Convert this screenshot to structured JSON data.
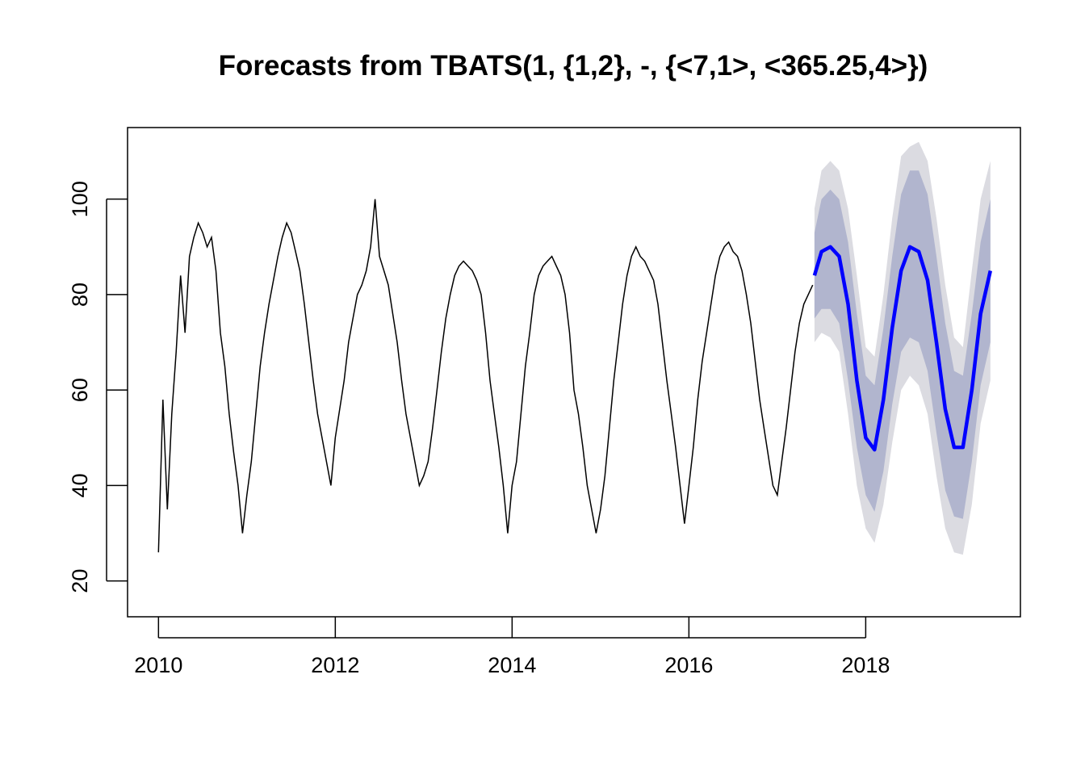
{
  "chart_data": {
    "type": "line",
    "title": "Forecasts from TBATS(1, {1,2}, -, {<7,1>, <365.25,4>})",
    "xlabel": "",
    "ylabel": "",
    "xlim": [
      2009.65,
      2019.75
    ],
    "ylim": [
      12.5,
      115
    ],
    "x_ticks": [
      2010,
      2012,
      2014,
      2016,
      2018
    ],
    "x_tick_labels": [
      "2010",
      "2012",
      "2014",
      "2016",
      "2018"
    ],
    "y_ticks": [
      20,
      40,
      60,
      80,
      100
    ],
    "y_tick_labels": [
      "20",
      "40",
      "60",
      "80",
      "100"
    ],
    "grid": false,
    "legend": "none",
    "colors": {
      "history": "#000000",
      "forecast": "#0000ff",
      "band_80": "#b1b5ce",
      "band_95": "#dbdbe1"
    },
    "series": [
      {
        "role": "history",
        "x": [
          2010.0,
          2010.05,
          2010.1,
          2010.15,
          2010.2,
          2010.25,
          2010.3,
          2010.35,
          2010.4,
          2010.45,
          2010.5,
          2010.55,
          2010.6,
          2010.65,
          2010.7,
          2010.75,
          2010.8,
          2010.85,
          2010.9,
          2010.95,
          2011.0,
          2011.05,
          2011.1,
          2011.15,
          2011.2,
          2011.25,
          2011.3,
          2011.35,
          2011.4,
          2011.45,
          2011.5,
          2011.55,
          2011.6,
          2011.65,
          2011.7,
          2011.75,
          2011.8,
          2011.85,
          2011.9,
          2011.95,
          2012.0,
          2012.05,
          2012.1,
          2012.15,
          2012.2,
          2012.25,
          2012.3,
          2012.35,
          2012.4,
          2012.45,
          2012.5,
          2012.55,
          2012.6,
          2012.65,
          2012.7,
          2012.75,
          2012.8,
          2012.85,
          2012.9,
          2012.95,
          2013.0,
          2013.05,
          2013.1,
          2013.15,
          2013.2,
          2013.25,
          2013.3,
          2013.35,
          2013.4,
          2013.45,
          2013.5,
          2013.55,
          2013.6,
          2013.65,
          2013.7,
          2013.75,
          2013.8,
          2013.85,
          2013.9,
          2013.95,
          2014.0,
          2014.05,
          2014.1,
          2014.15,
          2014.2,
          2014.25,
          2014.3,
          2014.35,
          2014.4,
          2014.45,
          2014.5,
          2014.55,
          2014.6,
          2014.65,
          2014.7,
          2014.75,
          2014.8,
          2014.85,
          2014.9,
          2014.95,
          2015.0,
          2015.05,
          2015.1,
          2015.15,
          2015.2,
          2015.25,
          2015.3,
          2015.35,
          2015.4,
          2015.45,
          2015.5,
          2015.55,
          2015.6,
          2015.65,
          2015.7,
          2015.75,
          2015.8,
          2015.85,
          2015.9,
          2015.95,
          2016.0,
          2016.05,
          2016.1,
          2016.15,
          2016.2,
          2016.25,
          2016.3,
          2016.35,
          2016.4,
          2016.45,
          2016.5,
          2016.55,
          2016.6,
          2016.65,
          2016.7,
          2016.75,
          2016.8,
          2016.85,
          2016.9,
          2016.95,
          2017.0,
          2017.05,
          2017.1,
          2017.15,
          2017.2,
          2017.25,
          2017.3,
          2017.35,
          2017.4
        ],
        "y": [
          26,
          58,
          35,
          55,
          68,
          84,
          72,
          88,
          92,
          95,
          93,
          90,
          92,
          85,
          72,
          65,
          55,
          47,
          40,
          30,
          38,
          45,
          55,
          65,
          72,
          78,
          83,
          88,
          92,
          95,
          93,
          89,
          85,
          78,
          70,
          62,
          55,
          50,
          45,
          40,
          50,
          56,
          62,
          70,
          75,
          80,
          82,
          85,
          90,
          100,
          88,
          85,
          82,
          76,
          70,
          62,
          55,
          50,
          45,
          40,
          42,
          45,
          52,
          60,
          68,
          75,
          80,
          84,
          86,
          87,
          86,
          85,
          83,
          80,
          72,
          62,
          55,
          48,
          40,
          30,
          40,
          45,
          55,
          65,
          72,
          80,
          84,
          86,
          87,
          88,
          86,
          84,
          80,
          72,
          60,
          55,
          48,
          40,
          35,
          30,
          35,
          42,
          52,
          62,
          70,
          78,
          84,
          88,
          90,
          88,
          87,
          85,
          83,
          78,
          70,
          62,
          55,
          48,
          40,
          32,
          40,
          48,
          58,
          66,
          72,
          78,
          84,
          88,
          90,
          91,
          89,
          88,
          85,
          80,
          74,
          66,
          58,
          52,
          46,
          40,
          38,
          45,
          52,
          60,
          68,
          74,
          78,
          80,
          82
        ]
      },
      {
        "role": "forecast",
        "x": [
          2017.42,
          2017.5,
          2017.6,
          2017.7,
          2017.8,
          2017.9,
          2018.0,
          2018.1,
          2018.2,
          2018.3,
          2018.4,
          2018.5,
          2018.6,
          2018.7,
          2018.8,
          2018.9,
          2019.0,
          2019.1,
          2019.2,
          2019.3,
          2019.41
        ],
        "y": [
          84,
          89,
          90,
          88,
          78,
          62,
          50,
          47.5,
          58,
          73,
          85,
          90,
          89,
          83,
          70,
          56,
          48,
          48,
          60,
          76,
          85
        ],
        "lo80": [
          75,
          77,
          77,
          74,
          62,
          48,
          38,
          34.5,
          43,
          57,
          68,
          71,
          70,
          64,
          51,
          39,
          33.5,
          33,
          45,
          61,
          70
        ],
        "hi80": [
          93,
          100,
          102,
          100,
          91,
          76,
          63,
          61,
          73,
          88,
          101,
          106,
          106,
          101,
          88,
          74,
          64,
          63,
          76,
          91,
          100
        ],
        "lo95": [
          70,
          72,
          71,
          68,
          55,
          40,
          31,
          28,
          36,
          49,
          60,
          63,
          61,
          55,
          42,
          31,
          26,
          25.5,
          36,
          53,
          62
        ],
        "hi95": [
          98,
          106,
          108,
          106,
          98,
          84,
          69,
          67,
          80,
          96,
          109,
          111,
          112,
          108,
          96,
          82,
          71,
          69,
          85,
          100,
          108
        ]
      }
    ]
  }
}
